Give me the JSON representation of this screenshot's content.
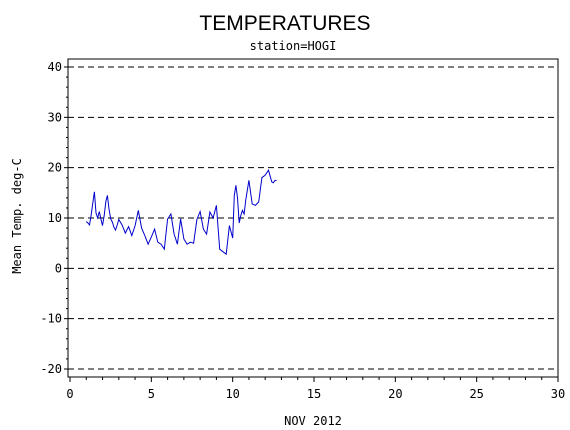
{
  "chart_data": {
    "type": "line",
    "title": "TEMPERATURES",
    "subtitle": "station=HOGI",
    "xlabel": "NOV 2012",
    "ylabel": "Mean Temp. deg-C",
    "xlim": [
      0,
      30
    ],
    "ylim": [
      -20,
      40
    ],
    "x_ticks": [
      0,
      5,
      10,
      15,
      20,
      25,
      30
    ],
    "y_ticks": [
      -20,
      -10,
      0,
      10,
      20,
      30,
      40
    ],
    "gridlines": "dashed horizontal at each y tick",
    "series": [
      {
        "color": "#0000cc",
        "x": [
          1.0,
          1.1,
          1.2,
          1.3,
          1.4,
          1.5,
          1.6,
          1.7,
          1.8,
          1.9,
          2.0,
          2.1,
          2.2,
          2.3,
          2.4,
          2.5,
          2.6,
          2.7,
          2.8,
          2.9,
          3.0,
          3.2,
          3.4,
          3.6,
          3.8,
          4.0,
          4.2,
          4.4,
          4.6,
          4.8,
          5.0,
          5.2,
          5.4,
          5.6,
          5.8,
          6.0,
          6.2,
          6.4,
          6.6,
          6.8,
          7.0,
          7.2,
          7.4,
          7.6,
          7.8,
          8.0,
          8.2,
          8.4,
          8.6,
          8.8,
          9.0,
          9.2,
          9.4,
          9.6,
          9.8,
          10.0,
          10.1,
          10.2,
          10.3,
          10.4,
          10.5,
          10.6,
          10.7,
          10.8,
          10.9,
          11.0,
          11.2,
          11.4,
          11.6,
          11.8,
          12.0,
          12.2,
          12.4,
          12.5,
          12.6,
          12.7
        ],
        "y": [
          9.3,
          9.0,
          8.6,
          10.5,
          13.0,
          15.2,
          11.0,
          10.0,
          11.3,
          9.8,
          8.5,
          10.5,
          13.2,
          14.5,
          11.8,
          9.8,
          9.2,
          8.2,
          7.6,
          8.6,
          9.7,
          8.6,
          7.0,
          8.3,
          6.5,
          8.5,
          11.5,
          8.0,
          6.5,
          4.8,
          6.2,
          7.8,
          5.2,
          4.8,
          3.8,
          9.8,
          10.8,
          6.8,
          4.8,
          9.8,
          5.8,
          4.8,
          5.2,
          5.0,
          9.7,
          11.3,
          7.8,
          6.8,
          11.2,
          10.0,
          12.5,
          3.8,
          3.3,
          2.8,
          8.5,
          6.0,
          14.5,
          16.5,
          14.0,
          9.0,
          10.5,
          11.5,
          10.8,
          13.5,
          15.5,
          17.5,
          12.8,
          12.5,
          13.2,
          18.0,
          18.5,
          19.5,
          17.2,
          17.0,
          17.5,
          17.4
        ]
      }
    ]
  }
}
